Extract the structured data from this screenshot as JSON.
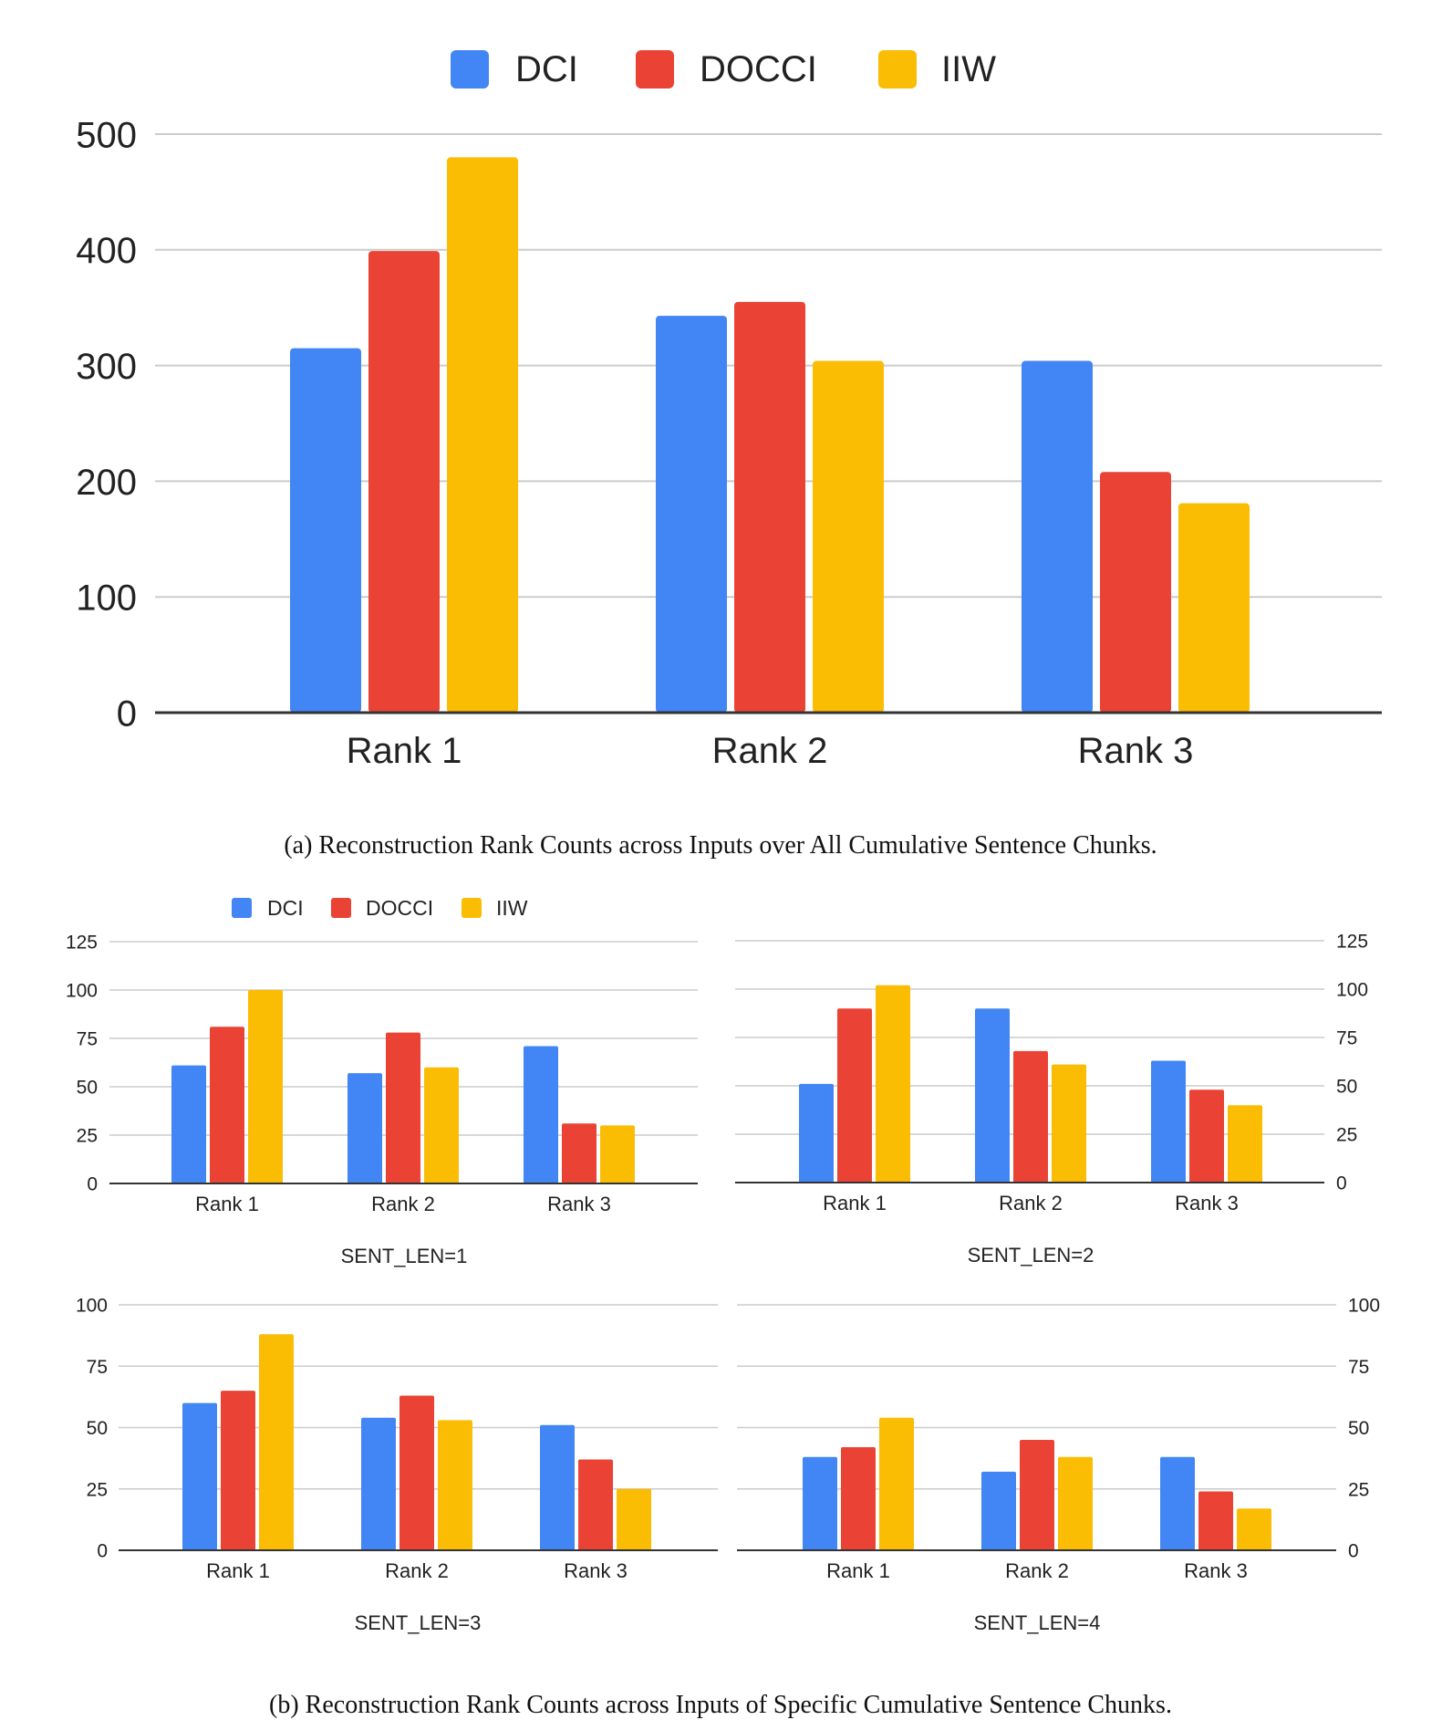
{
  "colors": {
    "DCI": "#4285F4",
    "DOCCI": "#EA4335",
    "IIW": "#FBBC04",
    "grid": "#cccccc",
    "axis": "#333333"
  },
  "chart_data": [
    {
      "type": "bar",
      "categories": [
        "Rank 1",
        "Rank 2",
        "Rank 3"
      ],
      "series": [
        {
          "name": "DCI",
          "values": [
            315,
            343,
            304
          ]
        },
        {
          "name": "DOCCI",
          "values": [
            399,
            355,
            208
          ]
        },
        {
          "name": "IIW",
          "values": [
            480,
            304,
            181
          ]
        }
      ],
      "ylim": [
        0,
        500
      ],
      "yticks": [
        0,
        100,
        200,
        300,
        400,
        500
      ],
      "legend": [
        "DCI",
        "DOCCI",
        "IIW"
      ],
      "xlabel": "",
      "ylabel": "",
      "caption": "(a) Reconstruction Rank Counts across Inputs over All Cumulative Sentence Chunks."
    },
    {
      "type": "bar",
      "categories": [
        "Rank 1",
        "Rank 2",
        "Rank 3"
      ],
      "series": [
        {
          "name": "DCI",
          "values": [
            61,
            57,
            71
          ]
        },
        {
          "name": "DOCCI",
          "values": [
            81,
            78,
            31
          ]
        },
        {
          "name": "IIW",
          "values": [
            100,
            60,
            30
          ]
        }
      ],
      "ylim": [
        0,
        125
      ],
      "yticks": [
        0,
        25,
        50,
        75,
        100,
        125
      ],
      "legend": [
        "DCI",
        "DOCCI",
        "IIW"
      ],
      "xlabel": "SENT_LEN=1"
    },
    {
      "type": "bar",
      "categories": [
        "Rank 1",
        "Rank 2",
        "Rank 3"
      ],
      "series": [
        {
          "name": "DCI",
          "values": [
            51,
            90,
            63
          ]
        },
        {
          "name": "DOCCI",
          "values": [
            90,
            68,
            48
          ]
        },
        {
          "name": "IIW",
          "values": [
            102,
            61,
            40
          ]
        }
      ],
      "ylim": [
        0,
        125
      ],
      "yticks": [
        0,
        25,
        50,
        75,
        100,
        125
      ],
      "xlabel": "SENT_LEN=2"
    },
    {
      "type": "bar",
      "categories": [
        "Rank 1",
        "Rank 2",
        "Rank 3"
      ],
      "series": [
        {
          "name": "DCI",
          "values": [
            60,
            54,
            51
          ]
        },
        {
          "name": "DOCCI",
          "values": [
            65,
            63,
            37
          ]
        },
        {
          "name": "IIW",
          "values": [
            88,
            53,
            25
          ]
        }
      ],
      "ylim": [
        0,
        100
      ],
      "yticks": [
        0,
        25,
        50,
        75,
        100
      ],
      "xlabel": "SENT_LEN=3"
    },
    {
      "type": "bar",
      "categories": [
        "Rank 1",
        "Rank 2",
        "Rank 3"
      ],
      "series": [
        {
          "name": "DCI",
          "values": [
            38,
            32,
            38
          ]
        },
        {
          "name": "DOCCI",
          "values": [
            42,
            45,
            24
          ]
        },
        {
          "name": "IIW",
          "values": [
            54,
            38,
            17
          ]
        }
      ],
      "ylim": [
        0,
        100
      ],
      "yticks": [
        0,
        25,
        50,
        75,
        100
      ],
      "xlabel": "SENT_LEN=4",
      "caption": "(b) Reconstruction Rank Counts across Inputs of Specific Cumulative Sentence Chunks."
    }
  ]
}
